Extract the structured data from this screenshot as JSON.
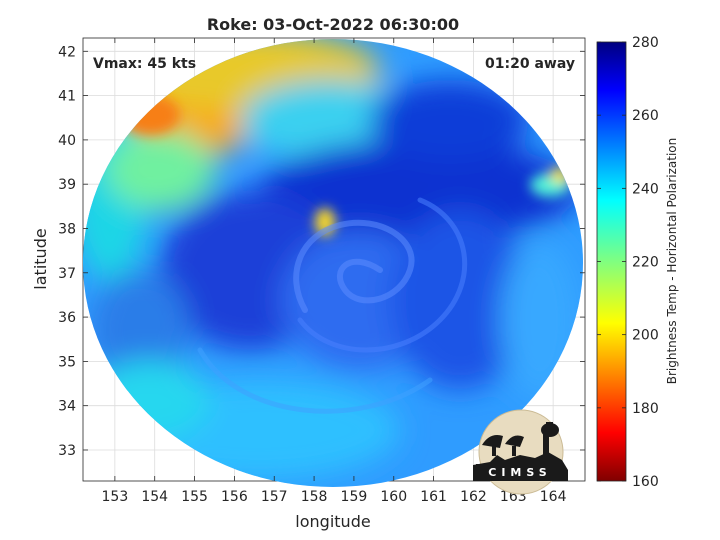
{
  "chart_data": {
    "type": "heatmap",
    "title": "Roke: 03-Oct-2022 06:30:00",
    "xlabel": "longitude",
    "ylabel": "latitude",
    "xlim": [
      152.2,
      164.8
    ],
    "ylim": [
      32.3,
      42.3
    ],
    "x_ticks": [
      153,
      154,
      155,
      156,
      157,
      158,
      159,
      160,
      161,
      162,
      163,
      164
    ],
    "y_ticks": [
      33,
      34,
      35,
      36,
      37,
      38,
      39,
      40,
      41,
      42
    ],
    "grid": true,
    "annotations": {
      "vmax": "Vmax: 45 kts",
      "time_away": "01:20 away"
    },
    "colorbar": {
      "label": "Brightness Temp - Horizontal Polarization",
      "range": [
        160,
        280
      ],
      "ticks": [
        160,
        180,
        200,
        220,
        240,
        260,
        280
      ],
      "colormap": "jet"
    },
    "field": {
      "center": [
        159.8,
        37.1
      ],
      "regions": [
        {
          "desc": "cold NW corner",
          "lon": 154.5,
          "lat": 41.5,
          "value": 205
        },
        {
          "desc": "warm core spot",
          "lon": 158.2,
          "lat": 38.0,
          "value": 205
        },
        {
          "desc": "warm NE edge",
          "lon": 163.7,
          "lat": 38.9,
          "value": 220
        },
        {
          "desc": "rain band",
          "lon": 160.5,
          "lat": 39.6,
          "value": 268
        },
        {
          "desc": "south ocean",
          "lon": 157.0,
          "lat": 33.5,
          "value": 236
        }
      ]
    }
  },
  "logo": {
    "text": "CIMSS"
  }
}
